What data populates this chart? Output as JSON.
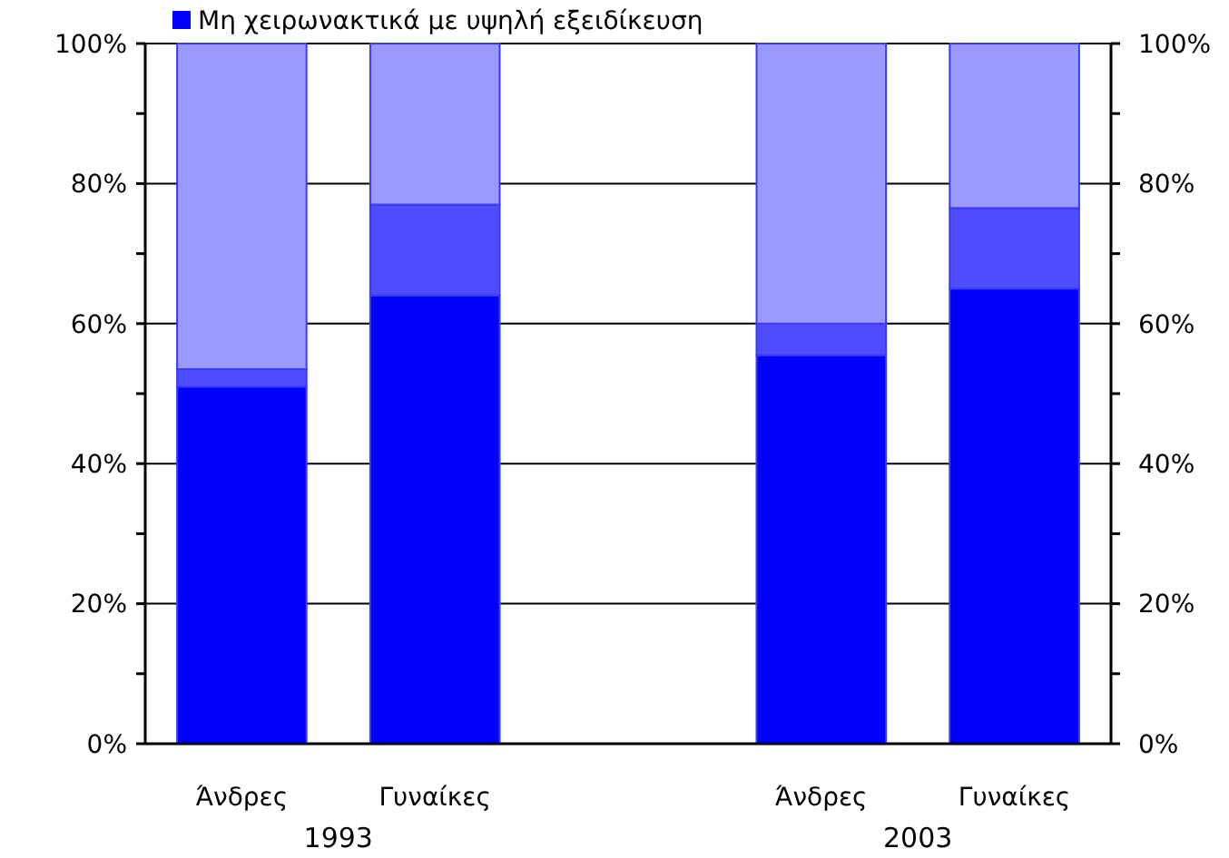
{
  "chart_data": {
    "type": "bar",
    "stacked": true,
    "categories": [
      "Άνδρες",
      "Γυναίκες",
      null,
      "Άνδρες",
      "Γυναίκες"
    ],
    "series": [
      {
        "name": "Μη χειρωνακτικά με υψηλή εξειδίκευση",
        "color": "#0000ff",
        "values": [
          51,
          64,
          null,
          55.5,
          65
        ]
      },
      {
        "color": "#4d4dff",
        "values": [
          2.5,
          13,
          null,
          4.5,
          11.5
        ]
      },
      {
        "color": "#9999ff",
        "values": [
          46.5,
          23,
          null,
          40,
          23.5
        ]
      }
    ],
    "ylim": [
      0,
      100
    ],
    "yticks": [
      {
        "value": 0,
        "label": "0%"
      },
      {
        "value": 10,
        "label": null
      },
      {
        "value": 20,
        "label": "20%"
      },
      {
        "value": 30,
        "label": null
      },
      {
        "value": 40,
        "label": "40%"
      },
      {
        "value": 50,
        "label": null
      },
      {
        "value": 60,
        "label": "60%"
      },
      {
        "value": 70,
        "label": null
      },
      {
        "value": 80,
        "label": "80%"
      },
      {
        "value": 90,
        "label": null
      },
      {
        "value": 100,
        "label": "100%"
      }
    ],
    "y2lim": [
      0,
      100
    ],
    "y2ticks": [
      {
        "value": 0,
        "label": "0%"
      },
      {
        "value": 10,
        "label": null
      },
      {
        "value": 20,
        "label": "20%"
      },
      {
        "value": 30,
        "label": null
      },
      {
        "value": 40,
        "label": "40%"
      },
      {
        "value": 50,
        "label": null
      },
      {
        "value": 60,
        "label": "60%"
      },
      {
        "value": 70,
        "label": null
      },
      {
        "value": 80,
        "label": "80%"
      },
      {
        "value": 90,
        "label": null
      },
      {
        "value": 100,
        "label": "100%"
      }
    ],
    "grid": "y",
    "legend": "top left",
    "annotations": [
      "1993",
      "2003"
    ]
  }
}
